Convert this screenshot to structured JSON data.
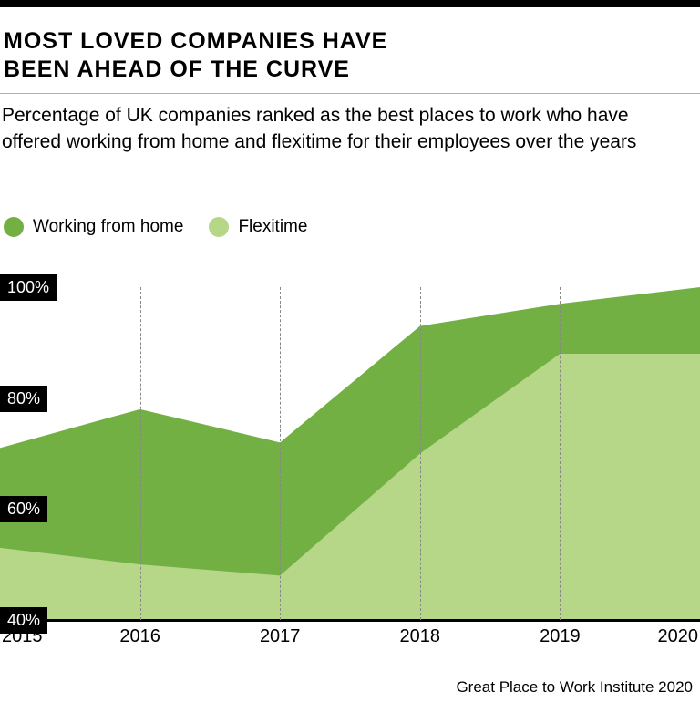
{
  "title_line1": "MOST LOVED COMPANIES HAVE",
  "title_line2": "BEEN AHEAD OF THE CURVE",
  "subtitle": "Percentage of UK companies ranked as the best places to work who have offered working from home and flexitime for their employees over the years",
  "legend": {
    "series1": "Working from home",
    "series2": "Flexitime"
  },
  "chart": {
    "type": "area",
    "x_categories": [
      "2015",
      "2016",
      "2017",
      "2018",
      "2019",
      "2020"
    ],
    "y_ticks": [
      40,
      60,
      80,
      100
    ],
    "y_tick_labels": [
      "40%",
      "60%",
      "80%",
      "100%"
    ],
    "ylim": [
      40,
      100
    ],
    "series": {
      "flexitime": {
        "color": "#b6d788",
        "values": [
          53,
          50,
          48,
          70,
          88,
          88
        ]
      },
      "working_from_home": {
        "color": "#72b043",
        "values": [
          71,
          78,
          72,
          93,
          97,
          100
        ]
      }
    },
    "background_color": "#ffffff",
    "gridline_color": "#888888",
    "axis_color": "#000000",
    "ylabel_bg": "#000000",
    "ylabel_fg": "#ffffff",
    "title_fontsize": 25,
    "subtitle_fontsize": 21,
    "legend_fontsize": 19,
    "axis_fontsize": 20
  },
  "source": "Great Place to Work Institute 2020"
}
